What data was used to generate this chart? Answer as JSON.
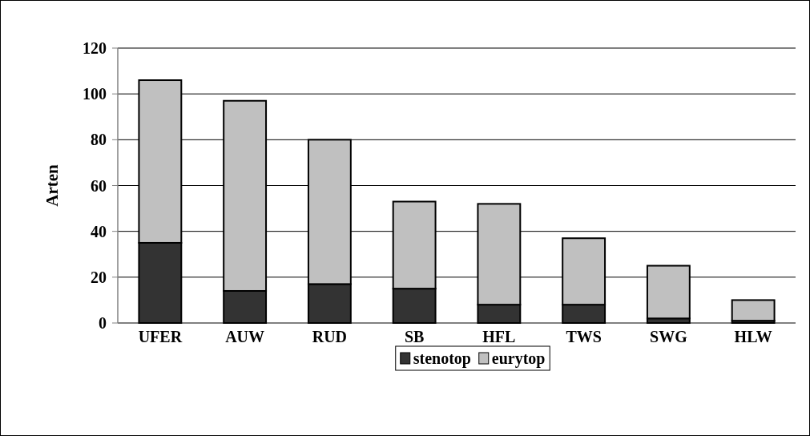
{
  "chart_data": {
    "type": "bar",
    "ylabel": "Arten",
    "categories": [
      "UFER",
      "AUW",
      "RUD",
      "SB",
      "HFL",
      "TWS",
      "SWG",
      "HLW"
    ],
    "stacked": true,
    "series": [
      {
        "name": "stenotop",
        "color": "#333333",
        "values": [
          35,
          14,
          17,
          15,
          8,
          8,
          2,
          1
        ]
      },
      {
        "name": "eurytop",
        "color": "#c0c0c0",
        "values": [
          71,
          83,
          63,
          38,
          44,
          29,
          23,
          9
        ]
      }
    ],
    "ylim": [
      0,
      120
    ],
    "yticks": [
      0,
      20,
      40,
      60,
      80,
      100,
      120
    ],
    "grid": "y",
    "legend": "bottom"
  }
}
